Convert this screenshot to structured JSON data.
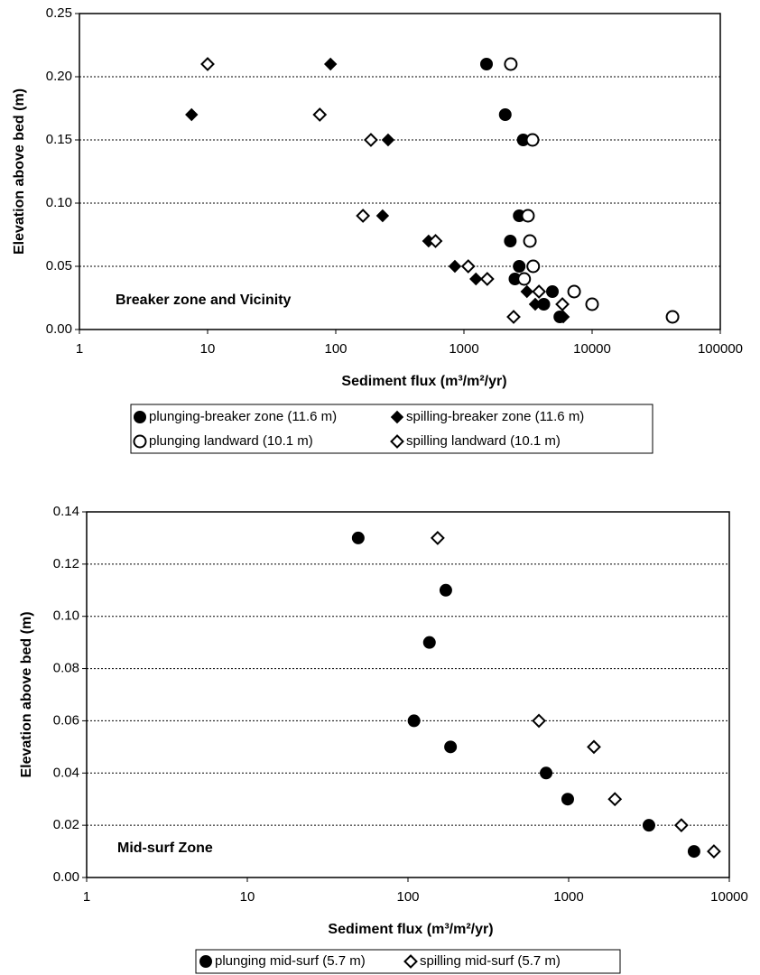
{
  "chart_data": [
    {
      "type": "scatter",
      "xscale": "log",
      "grid": "y",
      "legend": "below",
      "xlabel": "Sediment flux (m³/m²/yr)",
      "ylabel": "Elevation above bed (m)",
      "annotation": "Breaker zone and Vicinity",
      "xlim": [
        1,
        100000
      ],
      "xticks": [
        1,
        10,
        100,
        1000,
        10000,
        100000
      ],
      "ylim": [
        0,
        0.25
      ],
      "yticks": [
        {
          "value": 0,
          "label": "0.00"
        },
        {
          "value": 0.05,
          "label": "0.05"
        },
        {
          "value": 0.1,
          "label": "0.10"
        },
        {
          "value": 0.15,
          "label": "0.15"
        },
        {
          "value": 0.2,
          "label": "0.20"
        },
        {
          "value": 0.25,
          "label": "0.25"
        }
      ],
      "series": [
        {
          "name": "plunging-breaker zone (11.6 m)",
          "color": "#000000",
          "marker": "circle",
          "filled": true,
          "x": [
            1500,
            2100,
            2900,
            2700,
            2300,
            2700,
            2500,
            4900,
            4200,
            5600
          ],
          "values": [
            0.21,
            0.17,
            0.15,
            0.09,
            0.07,
            0.05,
            0.04,
            0.03,
            0.02,
            0.01
          ]
        },
        {
          "name": "spilling-breaker zone (11.6 m)",
          "color": "#000000",
          "marker": "diamond",
          "filled": true,
          "x": [
            7.5,
            91,
            256,
            232,
            530,
            850,
            1240,
            3100,
            3600,
            5960
          ],
          "values": [
            0.17,
            0.21,
            0.15,
            0.09,
            0.07,
            0.05,
            0.04,
            0.03,
            0.02,
            0.01
          ]
        },
        {
          "name": "plunging landward (10.1 m)",
          "color": "#000000",
          "marker": "circle",
          "filled": false,
          "x": [
            2320,
            3430,
            3160,
            3270,
            3470,
            2950,
            7240,
            10000,
            42400
          ],
          "values": [
            0.21,
            0.15,
            0.09,
            0.07,
            0.05,
            0.04,
            0.03,
            0.02,
            0.01
          ]
        },
        {
          "name": "spilling landward (10.1 m)",
          "color": "#000000",
          "marker": "diamond",
          "filled": false,
          "x": [
            10,
            75,
            188,
            163,
            600,
            1080,
            1520,
            3850,
            5860,
            2440
          ],
          "values": [
            0.21,
            0.17,
            0.15,
            0.09,
            0.07,
            0.05,
            0.04,
            0.03,
            0.02,
            0.01
          ]
        }
      ]
    },
    {
      "type": "scatter",
      "xscale": "log",
      "grid": "y",
      "legend": "below",
      "xlabel": "Sediment flux (m³/m²/yr)",
      "ylabel": "Elevation above bed (m)",
      "annotation": "Mid-surf Zone",
      "xlim": [
        1,
        10000
      ],
      "xticks": [
        1,
        10,
        100,
        1000,
        10000
      ],
      "ylim": [
        0,
        0.14
      ],
      "yticks": [
        {
          "value": 0,
          "label": "0.00"
        },
        {
          "value": 0.02,
          "label": "0.02"
        },
        {
          "value": 0.04,
          "label": "0.04"
        },
        {
          "value": 0.06,
          "label": "0.06"
        },
        {
          "value": 0.08,
          "label": "0.08"
        },
        {
          "value": 0.1,
          "label": "0.10"
        },
        {
          "value": 0.12,
          "label": "0.12"
        },
        {
          "value": 0.14,
          "label": "0.14"
        }
      ],
      "series": [
        {
          "name": "plunging mid-surf (5.7 m)",
          "color": "#000000",
          "marker": "circle",
          "filled": true,
          "x": [
            49,
            172,
            136,
            109,
            184,
            724,
            987,
            3160,
            6030
          ],
          "values": [
            0.13,
            0.11,
            0.09,
            0.06,
            0.05,
            0.04,
            0.03,
            0.02,
            0.01
          ]
        },
        {
          "name": "spilling mid-surf (5.7 m)",
          "color": "#000000",
          "marker": "diamond",
          "filled": false,
          "x": [
            153,
            653,
            1436,
            1940,
            5030,
            8020
          ],
          "values": [
            0.13,
            0.06,
            0.05,
            0.03,
            0.02,
            0.01
          ]
        }
      ]
    }
  ]
}
